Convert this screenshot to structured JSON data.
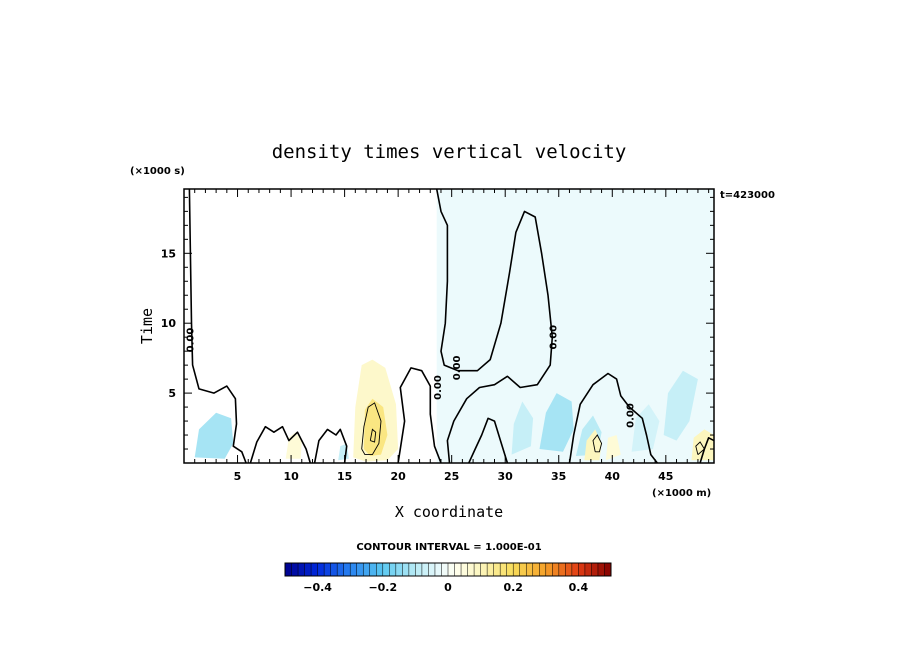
{
  "chart_data": {
    "type": "heatmap",
    "title": "density times vertical velocity",
    "xlabel": "X coordinate",
    "ylabel": "Time",
    "x_unit": "(×1000 m)",
    "y_unit": "(×1000 s)",
    "time_stamp": "t=423000",
    "xlim": [
      0,
      49.5
    ],
    "ylim": [
      0,
      19.6
    ],
    "x_ticks": [
      5,
      10,
      15,
      20,
      25,
      30,
      35,
      40,
      45
    ],
    "y_ticks": [
      5,
      10,
      15
    ],
    "x_tick_labels": [
      "5",
      "10",
      "15",
      "20",
      "25",
      "30",
      "35",
      "40",
      "45"
    ],
    "y_tick_labels": [
      "5",
      "10",
      "15"
    ],
    "contour_interval_text": "CONTOUR INTERVAL = 1.000E-01",
    "colorbar": {
      "min": -0.5,
      "max": 0.5,
      "ticks": [
        -0.4,
        -0.2,
        0,
        0.2,
        0.4
      ],
      "tick_labels": [
        "−0.4",
        "−0.2",
        "0",
        "0.2",
        "0.4"
      ]
    },
    "zero_contour_labels": [
      "0.00",
      "0.00",
      "0.00",
      "0.00",
      "0.00"
    ],
    "colors": {
      "pale_blue": "#e0f8fc",
      "light_blue": "#b8eaf4",
      "pale_yellow": "#fdf6cc",
      "light_yellow": "#f8eba0"
    },
    "regions": [
      {
        "label": "upper-right-negative",
        "value": -0.02,
        "poly": [
          [
            23.6,
            19.6
          ],
          [
            49.5,
            19.6
          ],
          [
            49.5,
            0
          ],
          [
            23.6,
            0
          ]
        ]
      },
      {
        "label": "left-negative-patch",
        "value": -0.12,
        "poly": [
          [
            1.0,
            0.4
          ],
          [
            1.4,
            2.4
          ],
          [
            3.0,
            3.6
          ],
          [
            4.4,
            3.2
          ],
          [
            4.6,
            1.4
          ],
          [
            3.8,
            0.3
          ]
        ]
      },
      {
        "label": "positive-17",
        "value": 0.08,
        "poly": [
          [
            15.8,
            0.4
          ],
          [
            16.0,
            4.0
          ],
          [
            16.6,
            7.0
          ],
          [
            17.6,
            7.4
          ],
          [
            18.8,
            6.8
          ],
          [
            19.8,
            4.2
          ],
          [
            20.0,
            1.0
          ],
          [
            19.0,
            0.2
          ],
          [
            17.0,
            0.1
          ]
        ]
      },
      {
        "label": "positive-17-core",
        "value": 0.16,
        "poly": [
          [
            16.8,
            1.0
          ],
          [
            16.9,
            3.8
          ],
          [
            17.6,
            4.6
          ],
          [
            18.6,
            4.0
          ],
          [
            19.0,
            2.0
          ],
          [
            18.4,
            0.6
          ],
          [
            17.4,
            0.5
          ]
        ]
      },
      {
        "label": "positive-10",
        "value": 0.06,
        "poly": [
          [
            9.5,
            0.3
          ],
          [
            9.8,
            1.8
          ],
          [
            10.4,
            2.2
          ],
          [
            11.0,
            1.6
          ],
          [
            10.9,
            0.3
          ]
        ]
      },
      {
        "label": "negative-15",
        "value": -0.08,
        "poly": [
          [
            14.4,
            0.2
          ],
          [
            14.6,
            1.2
          ],
          [
            15.2,
            1.4
          ],
          [
            15.4,
            0.3
          ]
        ]
      },
      {
        "label": "negative-30",
        "value": -0.08,
        "poly": [
          [
            30.6,
            0.6
          ],
          [
            30.8,
            2.8
          ],
          [
            31.6,
            4.4
          ],
          [
            32.6,
            3.2
          ],
          [
            32.4,
            1.2
          ]
        ]
      },
      {
        "label": "negative-34",
        "value": -0.12,
        "poly": [
          [
            33.2,
            1.0
          ],
          [
            33.8,
            3.6
          ],
          [
            34.8,
            5.0
          ],
          [
            36.2,
            4.4
          ],
          [
            36.4,
            2.4
          ],
          [
            35.4,
            0.8
          ]
        ]
      },
      {
        "label": "negative-38",
        "value": -0.1,
        "poly": [
          [
            36.6,
            0.5
          ],
          [
            37.2,
            2.4
          ],
          [
            38.2,
            3.4
          ],
          [
            39.0,
            2.2
          ],
          [
            38.6,
            0.6
          ]
        ]
      },
      {
        "label": "positive-38",
        "value": 0.1,
        "poly": [
          [
            37.4,
            0.2
          ],
          [
            37.6,
            1.6
          ],
          [
            38.4,
            2.4
          ],
          [
            39.0,
            1.4
          ],
          [
            38.8,
            0.2
          ]
        ]
      },
      {
        "label": "positive-40",
        "value": 0.06,
        "poly": [
          [
            39.4,
            0.2
          ],
          [
            39.6,
            1.8
          ],
          [
            40.4,
            2.0
          ],
          [
            40.8,
            0.6
          ]
        ]
      },
      {
        "label": "negative-43",
        "value": -0.06,
        "poly": [
          [
            41.8,
            0.8
          ],
          [
            42.2,
            3.2
          ],
          [
            43.4,
            4.2
          ],
          [
            44.4,
            3.0
          ],
          [
            43.8,
            1.0
          ]
        ]
      },
      {
        "label": "negative-46",
        "value": -0.08,
        "poly": [
          [
            44.8,
            2.0
          ],
          [
            45.2,
            5.0
          ],
          [
            46.6,
            6.6
          ],
          [
            48.0,
            6.0
          ],
          [
            47.2,
            3.0
          ],
          [
            46.0,
            1.6
          ]
        ]
      },
      {
        "label": "positive-48",
        "value": 0.1,
        "poly": [
          [
            47.4,
            0.2
          ],
          [
            47.6,
            1.8
          ],
          [
            48.6,
            2.4
          ],
          [
            49.5,
            2.0
          ],
          [
            49.5,
            0.2
          ]
        ]
      }
    ],
    "zero_contours": [
      {
        "points": [
          [
            0.5,
            19.6
          ],
          [
            0.6,
            15.0
          ],
          [
            0.7,
            10.0
          ],
          [
            0.8,
            7.0
          ],
          [
            1.4,
            5.3
          ],
          [
            2.8,
            5.0
          ],
          [
            4.0,
            5.5
          ],
          [
            4.8,
            4.6
          ],
          [
            4.9,
            2.8
          ],
          [
            4.6,
            1.2
          ],
          [
            5.4,
            0.8
          ],
          [
            5.8,
            0.0
          ]
        ]
      },
      {
        "points": [
          [
            23.6,
            19.6
          ],
          [
            24.0,
            18.0
          ],
          [
            24.6,
            17.0
          ],
          [
            24.6,
            13.0
          ],
          [
            24.4,
            10.0
          ],
          [
            24.0,
            8.0
          ],
          [
            24.3,
            7.0
          ],
          [
            25.6,
            6.6
          ],
          [
            27.4,
            6.6
          ],
          [
            28.6,
            7.4
          ],
          [
            29.6,
            10.0
          ],
          [
            30.4,
            13.6
          ],
          [
            31.0,
            16.5
          ],
          [
            31.8,
            18.0
          ],
          [
            32.8,
            17.6
          ],
          [
            33.4,
            15.0
          ],
          [
            34.0,
            12.0
          ],
          [
            34.4,
            9.0
          ],
          [
            34.2,
            7.0
          ],
          [
            33.0,
            5.6
          ],
          [
            31.4,
            5.4
          ],
          [
            30.2,
            6.2
          ],
          [
            29.0,
            5.6
          ],
          [
            27.6,
            5.4
          ],
          [
            26.4,
            4.6
          ],
          [
            25.2,
            3.0
          ],
          [
            24.6,
            1.6
          ],
          [
            24.8,
            0.0
          ]
        ]
      },
      {
        "points": [
          [
            24.0,
            0.0
          ],
          [
            23.4,
            1.2
          ],
          [
            23.0,
            3.5
          ],
          [
            23.0,
            5.5
          ],
          [
            22.2,
            6.6
          ],
          [
            21.2,
            6.8
          ],
          [
            20.2,
            5.4
          ],
          [
            20.6,
            3.0
          ],
          [
            20.2,
            1.0
          ],
          [
            20.0,
            0.0
          ]
        ]
      },
      {
        "points": [
          [
            30.2,
            0.0
          ],
          [
            29.6,
            1.5
          ],
          [
            29.0,
            3.0
          ],
          [
            28.4,
            3.2
          ],
          [
            27.8,
            2.0
          ],
          [
            27.2,
            1.0
          ],
          [
            26.6,
            0.0
          ]
        ]
      },
      {
        "points": [
          [
            36.0,
            0.0
          ],
          [
            36.4,
            2.0
          ],
          [
            37.0,
            4.2
          ],
          [
            38.2,
            5.6
          ],
          [
            39.6,
            6.4
          ],
          [
            40.4,
            6.0
          ],
          [
            40.8,
            4.8
          ],
          [
            41.6,
            4.0
          ],
          [
            42.8,
            3.2
          ],
          [
            43.2,
            2.0
          ],
          [
            43.6,
            0.6
          ],
          [
            44.2,
            0.0
          ]
        ]
      },
      {
        "points": [
          [
            6.2,
            0.0
          ],
          [
            6.8,
            1.5
          ],
          [
            7.6,
            2.6
          ],
          [
            8.4,
            2.2
          ],
          [
            9.2,
            2.6
          ],
          [
            9.8,
            1.6
          ],
          [
            10.6,
            2.2
          ],
          [
            11.4,
            1.0
          ],
          [
            11.8,
            0.0
          ]
        ]
      },
      {
        "points": [
          [
            12.2,
            0.0
          ],
          [
            12.6,
            1.6
          ],
          [
            13.4,
            2.4
          ],
          [
            14.2,
            2.0
          ],
          [
            14.6,
            2.4
          ],
          [
            15.2,
            1.2
          ],
          [
            15.0,
            0.0
          ]
        ]
      },
      {
        "points": [
          [
            48.2,
            0.0
          ],
          [
            48.6,
            1.0
          ],
          [
            49.0,
            1.8
          ],
          [
            49.5,
            1.6
          ]
        ]
      }
    ],
    "positive_contours": [
      {
        "points": [
          [
            16.6,
            1.0
          ],
          [
            16.8,
            2.6
          ],
          [
            17.2,
            4.0
          ],
          [
            17.8,
            4.3
          ],
          [
            18.4,
            3.0
          ],
          [
            18.2,
            1.4
          ],
          [
            17.6,
            0.6
          ],
          [
            16.9,
            0.6
          ],
          [
            16.6,
            1.0
          ]
        ]
      },
      {
        "points": [
          [
            17.4,
            1.6
          ],
          [
            17.6,
            2.4
          ],
          [
            17.9,
            2.2
          ],
          [
            17.8,
            1.5
          ],
          [
            17.4,
            1.6
          ]
        ]
      },
      {
        "points": [
          [
            38.4,
            0.8
          ],
          [
            38.2,
            1.6
          ],
          [
            38.6,
            2.0
          ],
          [
            39.0,
            1.4
          ],
          [
            38.8,
            0.8
          ],
          [
            38.4,
            0.8
          ]
        ]
      },
      {
        "points": [
          [
            48.0,
            0.6
          ],
          [
            47.8,
            1.2
          ],
          [
            48.2,
            1.5
          ],
          [
            48.6,
            1.0
          ],
          [
            48.0,
            0.6
          ]
        ]
      }
    ],
    "zero_label_positions": [
      [
        0.9,
        8.8
      ],
      [
        24.0,
        5.4
      ],
      [
        25.8,
        6.8
      ],
      [
        34.8,
        9.0
      ],
      [
        42.0,
        3.4
      ]
    ],
    "legend": "bottom-center colorbar"
  }
}
